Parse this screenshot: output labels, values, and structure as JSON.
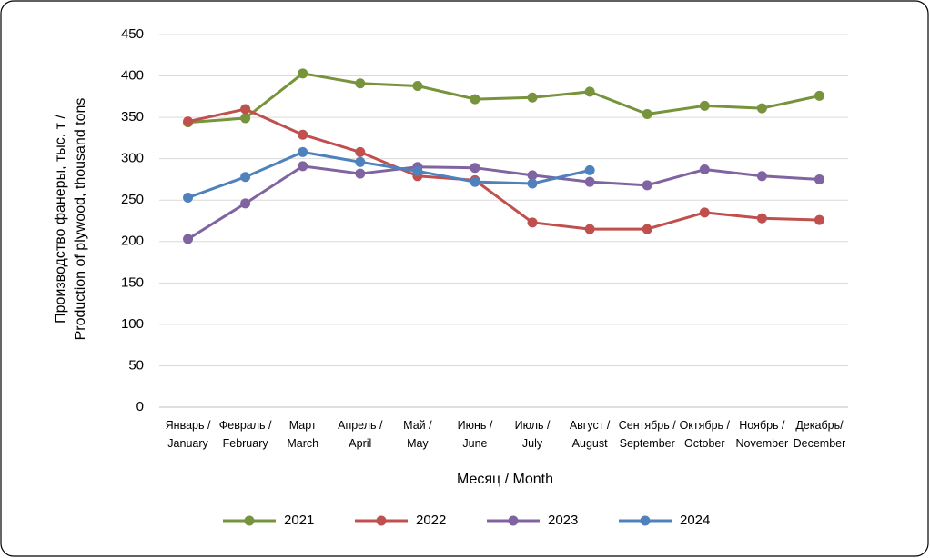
{
  "chart_data": {
    "type": "line",
    "categories": [
      "Январь /\nJanuary",
      "Февраль /\nFebruary",
      "Март\nMarch",
      "Апрель /\nApril",
      "Май /\nMay",
      "Июнь /\nJune",
      "Июль /\nJuly",
      "Август /\nAugust",
      "Сентябрь /\nSeptember",
      "Октябрь /\nOctober",
      "Ноябрь /\nNovember",
      "Декабрь/\nDecember"
    ],
    "series": [
      {
        "name": "2021",
        "color": "#77933c",
        "values": [
          344,
          349,
          403,
          391,
          388,
          372,
          374,
          381,
          354,
          364,
          361,
          376
        ]
      },
      {
        "name": "2022",
        "color": "#c0504d",
        "values": [
          345,
          360,
          329,
          308,
          279,
          274,
          223,
          215,
          215,
          235,
          228,
          226
        ]
      },
      {
        "name": "2023",
        "color": "#8064a2",
        "values": [
          203,
          246,
          291,
          282,
          290,
          289,
          280,
          272,
          268,
          287,
          279,
          275
        ]
      },
      {
        "name": "2024",
        "color": "#4f81bd",
        "values": [
          253,
          278,
          308,
          296,
          285,
          272,
          270,
          286,
          null,
          null,
          null,
          null
        ]
      }
    ],
    "xlabel": "Месяц / Month",
    "ylabel": "Производство фанеры, тыс. т /\nProduction of plywood, thousand tons",
    "ylim": [
      0,
      450
    ],
    "yticks": [
      0,
      50,
      100,
      150,
      200,
      250,
      300,
      350,
      400,
      450
    ],
    "grid": true,
    "legend": "bottom"
  }
}
